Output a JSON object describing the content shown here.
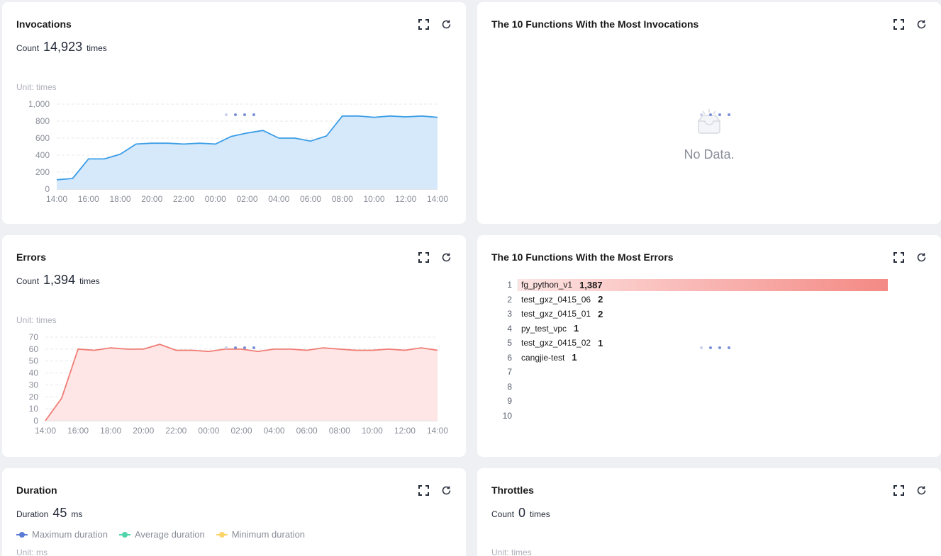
{
  "invocations": {
    "title": "Invocations",
    "count_label": "Count",
    "count_value": "14,923",
    "count_unit": "times",
    "unit_label": "Unit: times",
    "chart_data": {
      "type": "area",
      "title": "",
      "x": [
        "14:00",
        "15:00",
        "16:00",
        "17:00",
        "18:00",
        "19:00",
        "20:00",
        "21:00",
        "22:00",
        "23:00",
        "00:00",
        "01:00",
        "02:00",
        "03:00",
        "04:00",
        "05:00",
        "06:00",
        "07:00",
        "08:00",
        "09:00",
        "10:00",
        "11:00",
        "12:00",
        "13:00",
        "14:00"
      ],
      "x_ticks": [
        "14:00",
        "16:00",
        "18:00",
        "20:00",
        "22:00",
        "00:00",
        "02:00",
        "04:00",
        "06:00",
        "08:00",
        "10:00",
        "12:00",
        "14:00"
      ],
      "y_ticks": [
        "0",
        "200",
        "400",
        "600",
        "800",
        "1,000"
      ],
      "values": [
        110,
        125,
        355,
        355,
        410,
        530,
        540,
        540,
        530,
        540,
        530,
        620,
        660,
        690,
        600,
        600,
        565,
        625,
        860,
        860,
        845,
        860,
        850,
        860,
        845
      ],
      "ylim": [
        0,
        1000
      ],
      "color": "#3b9de6",
      "fill": "#d6e9fb"
    }
  },
  "top_invocations": {
    "title": "The 10 Functions With the Most Invocations",
    "empty_text": "No Data."
  },
  "errors": {
    "title": "Errors",
    "count_label": "Count",
    "count_value": "1,394",
    "count_unit": "times",
    "unit_label": "Unit: times",
    "chart_data": {
      "type": "area",
      "title": "",
      "x": [
        "14:00",
        "15:00",
        "16:00",
        "17:00",
        "18:00",
        "19:00",
        "20:00",
        "21:00",
        "22:00",
        "23:00",
        "00:00",
        "01:00",
        "02:00",
        "03:00",
        "04:00",
        "05:00",
        "06:00",
        "07:00",
        "08:00",
        "09:00",
        "10:00",
        "11:00",
        "12:00",
        "13:00",
        "14:00"
      ],
      "x_ticks": [
        "14:00",
        "16:00",
        "18:00",
        "20:00",
        "22:00",
        "00:00",
        "02:00",
        "04:00",
        "06:00",
        "08:00",
        "10:00",
        "12:00",
        "14:00"
      ],
      "y_ticks": [
        "0",
        "10",
        "20",
        "30",
        "40",
        "50",
        "60",
        "70"
      ],
      "values": [
        0,
        19,
        60,
        59,
        61,
        60,
        60,
        64,
        59,
        59,
        58,
        60,
        60,
        58,
        60,
        60,
        59,
        61,
        60,
        59,
        59,
        60,
        59,
        61,
        59
      ],
      "ylim": [
        0,
        70
      ],
      "color": "#f07c74",
      "fill": "#fde6e5"
    }
  },
  "top_errors": {
    "title": "The 10 Functions With the Most Errors",
    "chart_data": {
      "type": "bar",
      "ranks": [
        "1",
        "2",
        "3",
        "4",
        "5",
        "6",
        "7",
        "8",
        "9",
        "10"
      ],
      "categories": [
        "fg_python_v1",
        "test_gxz_0415_06",
        "test_gxz_0415_01",
        "py_test_vpc",
        "test_gxz_0415_02",
        "cangjie-test"
      ],
      "values": [
        1387,
        2,
        2,
        1,
        1,
        1
      ],
      "value_labels": [
        "1,387",
        "2",
        "2",
        "1",
        "1",
        "1"
      ]
    }
  },
  "duration": {
    "title": "Duration",
    "count_label": "Duration",
    "count_value": "45",
    "count_unit": "ms",
    "unit_label": "Unit: ms",
    "legend": [
      {
        "label": "Maximum duration",
        "color": "#5b7bd5"
      },
      {
        "label": "Average duration",
        "color": "#50d4ab"
      },
      {
        "label": "Minimum duration",
        "color": "#fbd46a"
      }
    ]
  },
  "throttles": {
    "title": "Throttles",
    "count_label": "Count",
    "count_value": "0",
    "count_unit": "times",
    "unit_label": "Unit: times"
  }
}
